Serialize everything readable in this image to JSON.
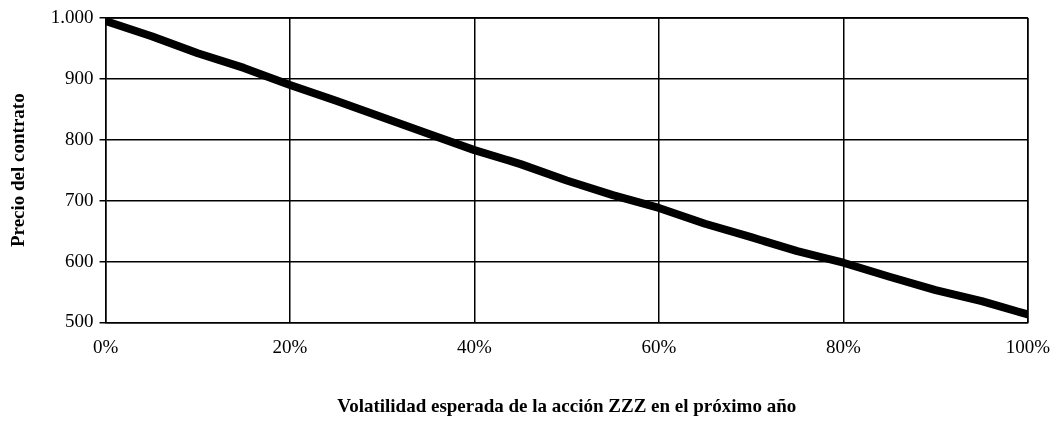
{
  "chart_data": {
    "type": "line",
    "xlabel": "Volatilidad esperada de la acción ZZZ en el próximo año",
    "ylabel": "Precio del contrato",
    "x": [
      0,
      5,
      10,
      15,
      20,
      25,
      30,
      35,
      40,
      45,
      50,
      55,
      60,
      65,
      70,
      75,
      80,
      85,
      90,
      95,
      100
    ],
    "series": [
      {
        "color": "#000000",
        "values": [
          995,
          970,
          942,
          918,
          890,
          864,
          837,
          810,
          783,
          760,
          733,
          709,
          688,
          662,
          640,
          617,
          598,
          575,
          553,
          535,
          513
        ]
      }
    ],
    "xlim": [
      0,
      100
    ],
    "xticks": [
      {
        "value": 0,
        "label": "0%"
      },
      {
        "value": 20,
        "label": "20%"
      },
      {
        "value": 40,
        "label": "40%"
      },
      {
        "value": 60,
        "label": "60%"
      },
      {
        "value": 80,
        "label": "80%"
      },
      {
        "value": 100,
        "label": "100%"
      }
    ],
    "ylim": [
      500,
      1000
    ],
    "yticks": [
      500,
      600,
      700,
      800,
      900,
      {
        "value": 1000,
        "label": "1.000"
      }
    ],
    "grid": true,
    "legend": false,
    "marker": "none",
    "line_style": "solid"
  }
}
